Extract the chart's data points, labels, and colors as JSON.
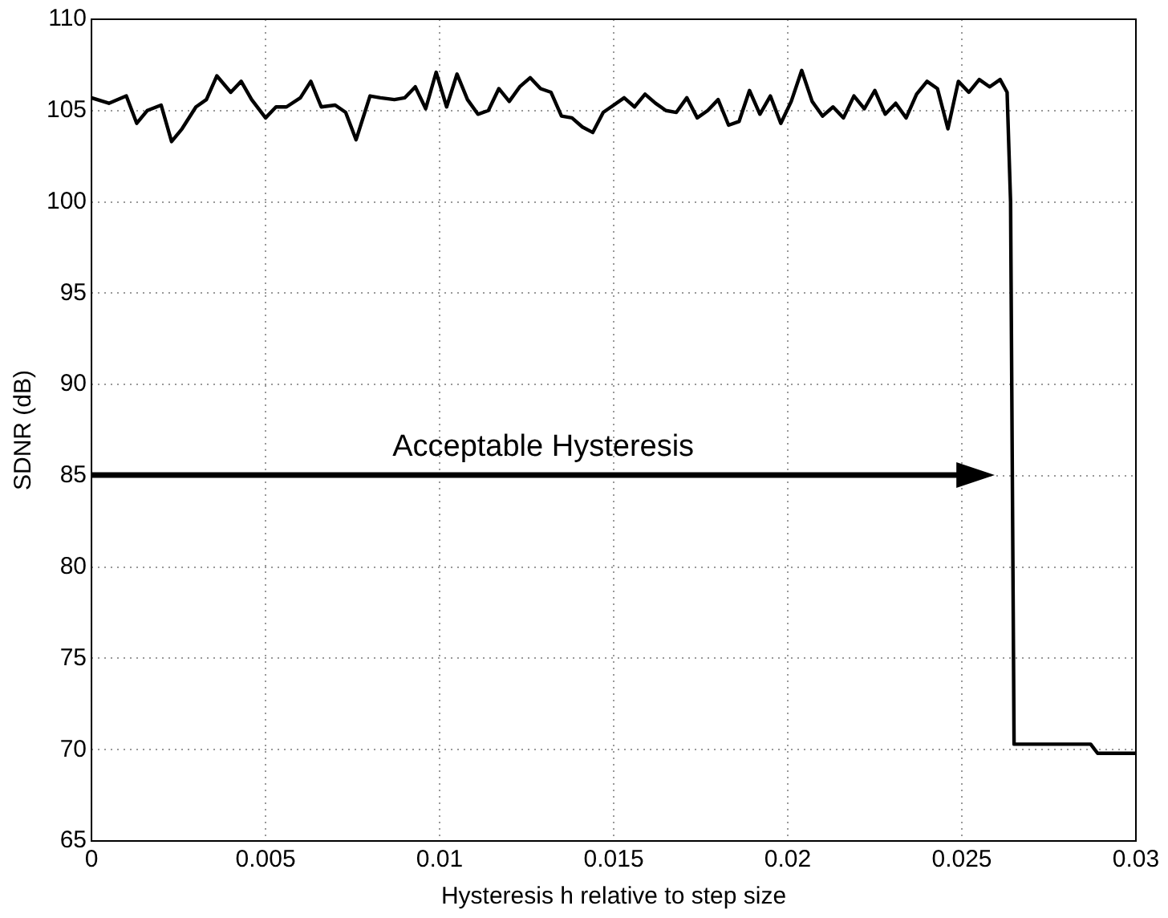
{
  "chart_data": {
    "type": "line",
    "xlabel": "Hysteresis h relative to step size",
    "ylabel": "SDNR (dB)",
    "xlim": [
      0,
      0.03
    ],
    "xticks": [
      0,
      0.005,
      0.01,
      0.015,
      0.02,
      0.025,
      0.03
    ],
    "ylim": [
      65,
      110
    ],
    "yticks": [
      65,
      70,
      75,
      80,
      85,
      90,
      95,
      100,
      105,
      110
    ],
    "grid": true,
    "legend": false,
    "marker": "none",
    "line_style": "solid",
    "annotations": [
      "Acceptable Hysteresis"
    ],
    "series": [
      {
        "color": "#000000",
        "x": [
          0,
          0.0005,
          0.001,
          0.0013,
          0.0016,
          0.002,
          0.0023,
          0.0026,
          0.003,
          0.0033,
          0.0036,
          0.004,
          0.0043,
          0.0046,
          0.005,
          0.0053,
          0.0056,
          0.006,
          0.0063,
          0.0066,
          0.007,
          0.0073,
          0.0076,
          0.008,
          0.0083,
          0.0087,
          0.009,
          0.0093,
          0.0096,
          0.0099,
          0.0102,
          0.0105,
          0.0108,
          0.0111,
          0.0114,
          0.0117,
          0.012,
          0.0123,
          0.0126,
          0.0129,
          0.0132,
          0.0135,
          0.0138,
          0.0141,
          0.0144,
          0.0147,
          0.015,
          0.0153,
          0.0156,
          0.0159,
          0.0162,
          0.0165,
          0.0168,
          0.0171,
          0.0174,
          0.0177,
          0.018,
          0.0183,
          0.0186,
          0.0189,
          0.0192,
          0.0195,
          0.0198,
          0.0201,
          0.0204,
          0.0207,
          0.021,
          0.0213,
          0.0216,
          0.0219,
          0.0222,
          0.0225,
          0.0228,
          0.0231,
          0.0234,
          0.0237,
          0.024,
          0.0243,
          0.0246,
          0.0249,
          0.0252,
          0.0255,
          0.0258,
          0.0261,
          0.0263,
          0.0264,
          0.0265,
          0.0287,
          0.0289,
          0.03
        ],
        "values": [
          105.7,
          105.4,
          105.8,
          104.3,
          105.0,
          105.3,
          103.3,
          104.0,
          105.2,
          105.6,
          106.9,
          106.0,
          106.6,
          105.6,
          104.6,
          105.2,
          105.2,
          105.7,
          106.6,
          105.2,
          105.3,
          104.9,
          103.4,
          105.8,
          105.7,
          105.6,
          105.7,
          106.3,
          105.1,
          107.1,
          105.2,
          107.0,
          105.6,
          104.8,
          105.0,
          106.2,
          105.5,
          106.3,
          106.8,
          106.2,
          106.0,
          104.7,
          104.6,
          104.1,
          103.8,
          104.9,
          105.3,
          105.7,
          105.2,
          105.9,
          105.4,
          105.0,
          104.9,
          105.7,
          104.6,
          105.0,
          105.6,
          104.2,
          104.4,
          106.1,
          104.8,
          105.8,
          104.3,
          105.5,
          107.2,
          105.5,
          104.7,
          105.2,
          104.6,
          105.8,
          105.1,
          106.1,
          104.8,
          105.4,
          104.6,
          105.9,
          106.6,
          106.2,
          104.0,
          106.6,
          106.0,
          106.7,
          106.3,
          106.7,
          106.0,
          100,
          70.3,
          70.3,
          69.8,
          69.8
        ]
      }
    ]
  }
}
